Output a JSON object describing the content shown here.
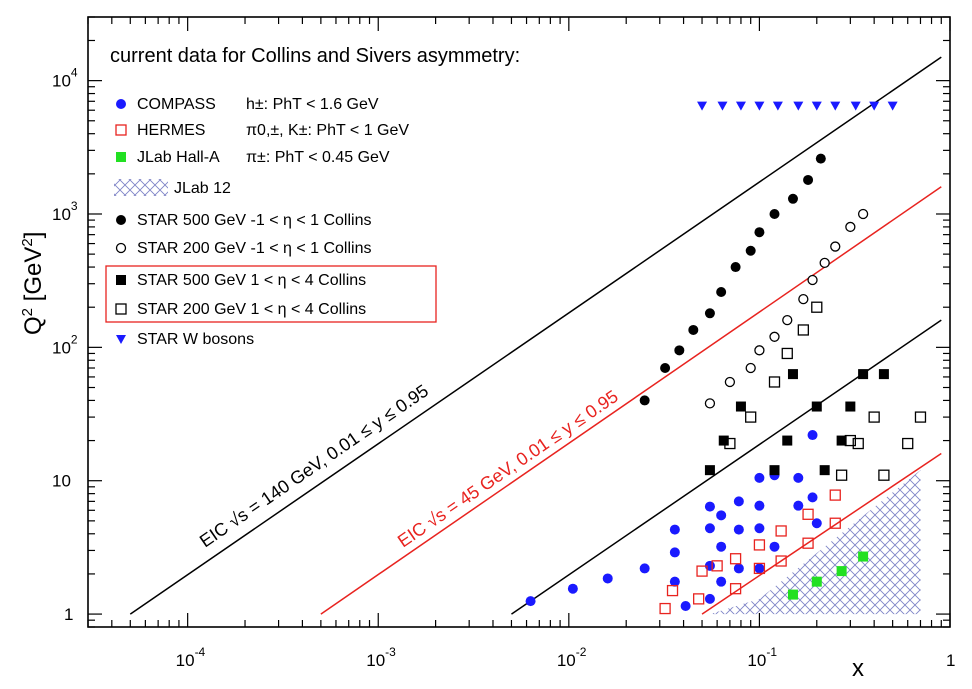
{
  "chart_data": {
    "type": "scatter",
    "title": "current data for Collins and Sivers asymmetry:",
    "xlabel": "x",
    "ylabel": "Q² [GeV²]",
    "x_scale": "log",
    "y_scale": "log",
    "xlim": [
      3e-05,
      1
    ],
    "ylim": [
      0.8,
      30000
    ],
    "x_tick_labels": {
      "1e-4": "10",
      "1e-3": "10",
      "1e-2": "10",
      "1e-1": "10",
      "1": "1"
    },
    "x_tick_exponents": {
      "1e-4": "-4",
      "1e-3": "-3",
      "1e-2": "-2",
      "1e-1": "-1"
    },
    "y_tick_labels": {
      "1": "1",
      "10": "10",
      "100": "10",
      "1000": "10",
      "10000": "10"
    },
    "y_tick_exponents": {
      "100": "2",
      "1000": "3",
      "10000": "4"
    },
    "legend_position": "top-left",
    "series": [
      {
        "name": "COMPASS",
        "cut": "h±: PhT < 1.6 GeV",
        "marker": "circle-filled",
        "color": "#1a1aff",
        "points": [
          [
            0.0063,
            1.25
          ],
          [
            0.0105,
            1.55
          ],
          [
            0.016,
            1.85
          ],
          [
            0.025,
            2.2
          ],
          [
            0.036,
            1.75
          ],
          [
            0.036,
            2.9
          ],
          [
            0.036,
            4.3
          ],
          [
            0.041,
            1.15
          ],
          [
            0.055,
            1.3
          ],
          [
            0.055,
            2.3
          ],
          [
            0.055,
            4.4
          ],
          [
            0.055,
            6.4
          ],
          [
            0.063,
            1.75
          ],
          [
            0.063,
            3.2
          ],
          [
            0.063,
            5.5
          ],
          [
            0.078,
            2.2
          ],
          [
            0.078,
            4.3
          ],
          [
            0.078,
            7.0
          ],
          [
            0.1,
            2.2
          ],
          [
            0.1,
            4.4
          ],
          [
            0.1,
            6.5
          ],
          [
            0.1,
            10.5
          ],
          [
            0.12,
            3.2
          ],
          [
            0.12,
            11
          ],
          [
            0.16,
            6.5
          ],
          [
            0.16,
            10.5
          ],
          [
            0.19,
            22
          ],
          [
            0.19,
            7.5
          ],
          [
            0.2,
            4.8
          ]
        ]
      },
      {
        "name": "HERMES",
        "cut": "π0,±, K±: PhT < 1 GeV",
        "marker": "square-open",
        "color": "#e8231f",
        "points": [
          [
            0.032,
            1.1
          ],
          [
            0.035,
            1.5
          ],
          [
            0.048,
            1.3
          ],
          [
            0.05,
            2.1
          ],
          [
            0.06,
            2.3
          ],
          [
            0.075,
            1.55
          ],
          [
            0.075,
            2.6
          ],
          [
            0.1,
            2.2
          ],
          [
            0.1,
            3.3
          ],
          [
            0.13,
            2.5
          ],
          [
            0.13,
            4.2
          ],
          [
            0.18,
            3.4
          ],
          [
            0.18,
            5.6
          ],
          [
            0.25,
            4.8
          ],
          [
            0.25,
            7.8
          ]
        ]
      },
      {
        "name": "JLab Hall-A",
        "cut": "π±: PhT < 0.45 GeV",
        "marker": "square-filled",
        "color": "#22e022",
        "points": [
          [
            0.15,
            1.4
          ],
          [
            0.2,
            1.75
          ],
          [
            0.27,
            2.1
          ],
          [
            0.35,
            2.7
          ]
        ]
      },
      {
        "name": "JLab 12",
        "marker": "hatched-region",
        "color": "#7f84c6",
        "region_vertices": [
          [
            0.055,
            1.0
          ],
          [
            0.09,
            1.0
          ],
          [
            0.7,
            1.0
          ],
          [
            0.7,
            12
          ],
          [
            0.1,
            1.3
          ]
        ]
      },
      {
        "name": "STAR 500 GeV -1 < η < 1 Collins",
        "marker": "circle-filled",
        "color": "#000000",
        "points": [
          [
            0.025,
            40
          ],
          [
            0.032,
            70
          ],
          [
            0.038,
            95
          ],
          [
            0.045,
            135
          ],
          [
            0.055,
            180
          ],
          [
            0.063,
            260
          ],
          [
            0.075,
            400
          ],
          [
            0.09,
            530
          ],
          [
            0.1,
            730
          ],
          [
            0.12,
            1000
          ],
          [
            0.15,
            1300
          ],
          [
            0.18,
            1800
          ],
          [
            0.21,
            2600
          ]
        ]
      },
      {
        "name": "STAR 200 GeV -1 < η < 1 Collins",
        "marker": "circle-open",
        "color": "#000000",
        "points": [
          [
            0.055,
            38
          ],
          [
            0.07,
            55
          ],
          [
            0.09,
            70
          ],
          [
            0.1,
            95
          ],
          [
            0.12,
            120
          ],
          [
            0.14,
            160
          ],
          [
            0.17,
            230
          ],
          [
            0.19,
            320
          ],
          [
            0.22,
            430
          ],
          [
            0.25,
            570
          ],
          [
            0.3,
            800
          ],
          [
            0.35,
            1000
          ]
        ]
      },
      {
        "name": "STAR 500 GeV 1 < η < 4 Collins",
        "marker": "square-filled",
        "color": "#000000",
        "points": [
          [
            0.055,
            12
          ],
          [
            0.065,
            20
          ],
          [
            0.08,
            36
          ],
          [
            0.12,
            12
          ],
          [
            0.14,
            20
          ],
          [
            0.15,
            63
          ],
          [
            0.2,
            36
          ],
          [
            0.22,
            12
          ],
          [
            0.27,
            20
          ],
          [
            0.3,
            36
          ],
          [
            0.35,
            63
          ],
          [
            0.45,
            63
          ]
        ]
      },
      {
        "name": "STAR 200 GeV 1 < η < 4 Collins",
        "marker": "square-open",
        "color": "#000000",
        "points": [
          [
            0.07,
            19
          ],
          [
            0.09,
            30
          ],
          [
            0.12,
            55
          ],
          [
            0.14,
            90
          ],
          [
            0.17,
            135
          ],
          [
            0.2,
            200
          ],
          [
            0.27,
            11
          ],
          [
            0.3,
            20
          ],
          [
            0.33,
            19
          ],
          [
            0.4,
            30
          ],
          [
            0.45,
            11
          ],
          [
            0.6,
            19
          ],
          [
            0.7,
            30
          ]
        ]
      },
      {
        "name": "STAR W bosons",
        "marker": "triangle-down-filled",
        "color": "#1a1aff",
        "points": [
          [
            0.05,
            6500
          ],
          [
            0.064,
            6500
          ],
          [
            0.08,
            6500
          ],
          [
            0.1,
            6500
          ],
          [
            0.125,
            6500
          ],
          [
            0.16,
            6500
          ],
          [
            0.2,
            6500
          ],
          [
            0.25,
            6500
          ],
          [
            0.32,
            6500
          ],
          [
            0.4,
            6500
          ],
          [
            0.5,
            6500
          ]
        ]
      }
    ],
    "lines": [
      {
        "label": "EIC √s = 140 GeV, 0.01 ≤ y ≤ 0.95",
        "color": "#000000",
        "points": [
          [
            5e-05,
            1.0
          ],
          [
            0.9,
            15000
          ]
        ]
      },
      {
        "label": "EIC √s = 45 GeV, 0.01 ≤ y ≤ 0.95",
        "color": "#e8231f",
        "points": [
          [
            0.0005,
            1.0
          ],
          [
            0.9,
            1600
          ]
        ]
      },
      {
        "label": "",
        "color": "#000000",
        "points": [
          [
            0.005,
            1.0
          ],
          [
            0.9,
            160
          ]
        ]
      },
      {
        "label": "",
        "color": "#e8231f",
        "points": [
          [
            0.05,
            1.0
          ],
          [
            0.9,
            16
          ]
        ]
      }
    ],
    "legend_box": "STAR 1 < η < 4 Collins entries highlighted by red frame"
  }
}
